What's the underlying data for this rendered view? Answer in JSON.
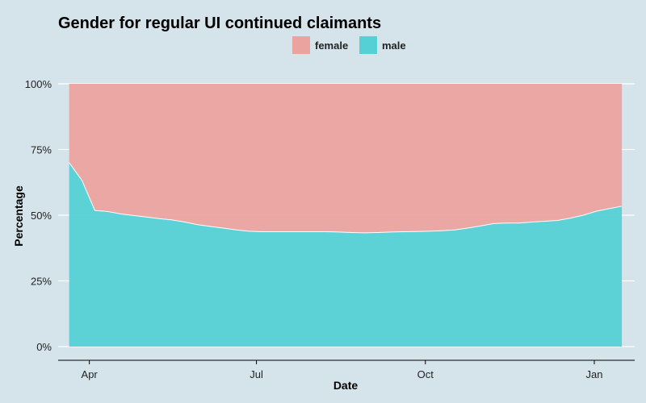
{
  "chart_data": {
    "type": "area",
    "stacked": true,
    "percent": true,
    "title": "Gender for regular UI continued claimants",
    "xlabel": "Date",
    "ylabel": "Percentage",
    "ylim": [
      0,
      100
    ],
    "xlim": [
      "2020-03-15",
      "2021-01-23"
    ],
    "yticks": [
      0,
      25,
      50,
      75,
      100
    ],
    "ytick_labels": [
      "0%",
      "25%",
      "50%",
      "75%",
      "100%"
    ],
    "xticks": [
      "2020-04-01",
      "2020-07-01",
      "2020-10-01",
      "2021-01-01"
    ],
    "xtick_labels": [
      "Apr",
      "Jul",
      "Oct",
      "Jan"
    ],
    "grid": true,
    "legend": {
      "position": "top",
      "entries": [
        "female",
        "male"
      ]
    },
    "colors": {
      "female": "#eba39f",
      "male": "#55d0d5",
      "background": "#d5e3ea"
    },
    "x": [
      "2020-03-21",
      "2020-03-28",
      "2020-04-04",
      "2020-04-11",
      "2020-04-18",
      "2020-04-25",
      "2020-05-02",
      "2020-05-09",
      "2020-05-16",
      "2020-05-23",
      "2020-05-30",
      "2020-06-06",
      "2020-06-13",
      "2020-06-20",
      "2020-06-27",
      "2020-07-04",
      "2020-07-11",
      "2020-07-18",
      "2020-07-25",
      "2020-08-01",
      "2020-08-08",
      "2020-08-15",
      "2020-08-22",
      "2020-08-29",
      "2020-09-05",
      "2020-09-12",
      "2020-09-19",
      "2020-09-26",
      "2020-10-03",
      "2020-10-10",
      "2020-10-17",
      "2020-10-24",
      "2020-10-31",
      "2020-11-07",
      "2020-11-14",
      "2020-11-21",
      "2020-11-28",
      "2020-12-05",
      "2020-12-12",
      "2020-12-19",
      "2020-12-26",
      "2021-01-02",
      "2021-01-09",
      "2021-01-16"
    ],
    "series": [
      {
        "name": "female",
        "values": [
          30.0,
          36.8,
          48.2,
          48.6,
          49.5,
          50.1,
          50.7,
          51.3,
          51.8,
          52.6,
          53.6,
          54.3,
          54.9,
          55.6,
          56.1,
          56.3,
          56.3,
          56.3,
          56.3,
          56.3,
          56.3,
          56.4,
          56.6,
          56.7,
          56.6,
          56.4,
          56.3,
          56.2,
          56.1,
          55.9,
          55.6,
          54.9,
          54.1,
          53.2,
          53.0,
          53.0,
          52.6,
          52.3,
          52.0,
          51.1,
          50.0,
          48.5,
          47.5,
          46.6
        ]
      },
      {
        "name": "male",
        "values": [
          70.0,
          63.2,
          51.8,
          51.4,
          50.5,
          49.9,
          49.3,
          48.7,
          48.2,
          47.4,
          46.4,
          45.7,
          45.1,
          44.4,
          43.9,
          43.7,
          43.7,
          43.7,
          43.7,
          43.7,
          43.7,
          43.6,
          43.4,
          43.3,
          43.4,
          43.6,
          43.7,
          43.8,
          43.9,
          44.1,
          44.4,
          45.1,
          45.9,
          46.8,
          47.0,
          47.0,
          47.4,
          47.7,
          48.0,
          48.9,
          50.0,
          51.5,
          52.5,
          53.4
        ]
      }
    ]
  }
}
